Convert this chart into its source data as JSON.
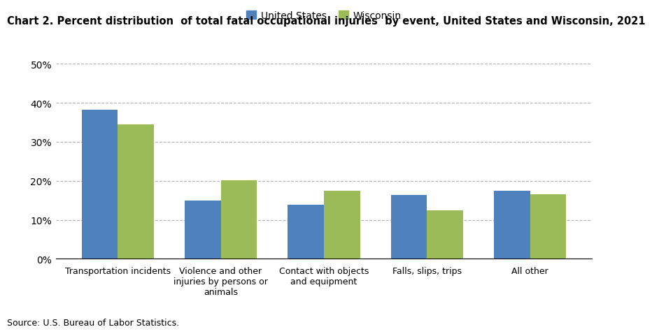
{
  "title": "Chart 2. Percent distribution  of total fatal occupational injuries  by event, United States and Wisconsin, 2021",
  "categories": [
    "Transportation incidents",
    "Violence and other\ninjuries by persons or\nanimals",
    "Contact with objects\nand equipment",
    "Falls, slips, trips",
    "All other"
  ],
  "us_values": [
    38.2,
    14.9,
    13.8,
    16.4,
    17.4
  ],
  "wi_values": [
    34.5,
    20.2,
    17.4,
    12.5,
    16.5
  ],
  "us_color": "#4f81bd",
  "wi_color": "#9bbb59",
  "ylim": [
    0,
    50
  ],
  "yticks": [
    0,
    10,
    20,
    30,
    40,
    50
  ],
  "ytick_labels": [
    "0%",
    "10%",
    "20%",
    "30%",
    "40%",
    "50%"
  ],
  "legend_us": "United States",
  "legend_wi": "Wisconsin",
  "source": "Source: U.S. Bureau of Labor Statistics.",
  "background_color": "#ffffff",
  "grid_color": "#b0b0b0",
  "bar_width": 0.35
}
